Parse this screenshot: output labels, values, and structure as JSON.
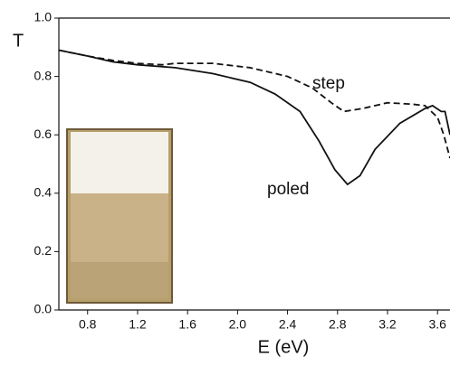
{
  "chart_data": {
    "type": "line",
    "x_label": "E (eV)",
    "y_label": "T",
    "xlim": [
      0.57,
      3.7
    ],
    "ylim": [
      0,
      1
    ],
    "xticks": [
      0.8,
      1.2,
      1.6,
      {
        "value": 2,
        "label": "2.0"
      },
      2.4,
      2.8,
      3.2,
      3.6
    ],
    "yticks": [
      {
        "value": 0,
        "label": "0.0"
      },
      0.2,
      0.4,
      0.6,
      0.8,
      {
        "value": 1,
        "label": "1.0"
      }
    ],
    "series": [
      {
        "name": "step",
        "color": "#111111",
        "style": "dashed",
        "x": [
          0.57,
          0.8,
          1.0,
          1.2,
          1.4,
          1.5,
          1.8,
          2.1,
          2.4,
          2.6,
          2.75,
          2.85,
          3.0,
          3.2,
          3.4,
          3.5,
          3.6,
          3.65,
          3.7
        ],
        "values": [
          0.89,
          0.87,
          0.855,
          0.845,
          0.84,
          0.845,
          0.845,
          0.83,
          0.8,
          0.76,
          0.71,
          0.68,
          0.69,
          0.71,
          0.705,
          0.7,
          0.66,
          0.6,
          0.52
        ]
      },
      {
        "name": "poled",
        "color": "#111111",
        "style": "solid",
        "x": [
          0.57,
          0.8,
          1.0,
          1.2,
          1.5,
          1.8,
          2.1,
          2.3,
          2.5,
          2.65,
          2.78,
          2.88,
          2.98,
          3.1,
          3.3,
          3.5,
          3.56,
          3.63,
          3.66,
          3.7
        ],
        "values": [
          0.89,
          0.87,
          0.85,
          0.84,
          0.83,
          0.81,
          0.78,
          0.74,
          0.68,
          0.58,
          0.48,
          0.43,
          0.46,
          0.55,
          0.64,
          0.69,
          0.7,
          0.68,
          0.68,
          0.6
        ]
      }
    ]
  }
}
